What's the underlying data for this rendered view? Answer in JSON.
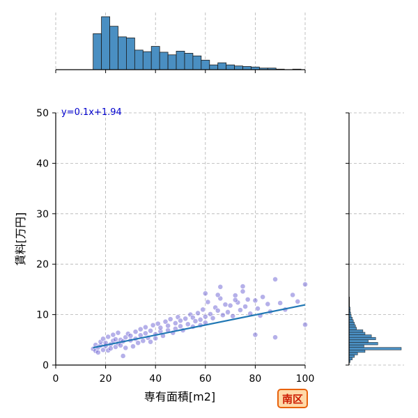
{
  "chart_data": {
    "type": "scatter",
    "xlabel": "専有面積[m2]",
    "ylabel": "賃料[万円]",
    "xlim": [
      0,
      100
    ],
    "ylim": [
      0,
      50
    ],
    "xticks": [
      "0",
      "20",
      "40",
      "60",
      "80",
      "100"
    ],
    "yticks": [
      "0",
      "10",
      "20",
      "30",
      "40",
      "50"
    ],
    "grid": true,
    "regression": {
      "label": "y=0.1x+1.94",
      "slope": 0.1,
      "intercept": 1.94,
      "x_range": [
        15,
        100
      ]
    },
    "scatter_color": "#5a4fcf",
    "line_color": "#1f77b4",
    "hist_color": "#4a8fc2",
    "scatter_points": [
      [
        15,
        3.2
      ],
      [
        16,
        2.8
      ],
      [
        16,
        4.0
      ],
      [
        17,
        3.5
      ],
      [
        17,
        2.5
      ],
      [
        18,
        3.9
      ],
      [
        18,
        4.6
      ],
      [
        19,
        3.0
      ],
      [
        19,
        5.2
      ],
      [
        20,
        3.8
      ],
      [
        20,
        4.4
      ],
      [
        21,
        2.9
      ],
      [
        21,
        5.6
      ],
      [
        22,
        4.1
      ],
      [
        22,
        3.3
      ],
      [
        23,
        4.8
      ],
      [
        23,
        6.0
      ],
      [
        24,
        3.6
      ],
      [
        24,
        5.1
      ],
      [
        25,
        4.3
      ],
      [
        25,
        6.4
      ],
      [
        26,
        3.9
      ],
      [
        26,
        5.0
      ],
      [
        27,
        4.7
      ],
      [
        27,
        1.8
      ],
      [
        28,
        5.5
      ],
      [
        28,
        3.4
      ],
      [
        29,
        6.2
      ],
      [
        30,
        4.9
      ],
      [
        30,
        5.8
      ],
      [
        31,
        3.7
      ],
      [
        32,
        6.6
      ],
      [
        32,
        5.2
      ],
      [
        33,
        4.4
      ],
      [
        34,
        7.1
      ],
      [
        34,
        5.9
      ],
      [
        35,
        4.8
      ],
      [
        36,
        6.3
      ],
      [
        36,
        7.5
      ],
      [
        37,
        5.4
      ],
      [
        38,
        6.8
      ],
      [
        38,
        4.6
      ],
      [
        39,
        7.9
      ],
      [
        40,
        6.1
      ],
      [
        40,
        5.3
      ],
      [
        41,
        8.2
      ],
      [
        42,
        6.7
      ],
      [
        42,
        7.4
      ],
      [
        43,
        5.8
      ],
      [
        44,
        8.6
      ],
      [
        45,
        6.9
      ],
      [
        45,
        7.8
      ],
      [
        46,
        9.1
      ],
      [
        47,
        6.4
      ],
      [
        48,
        8.3
      ],
      [
        48,
        7.2
      ],
      [
        49,
        9.5
      ],
      [
        50,
        7.7
      ],
      [
        50,
        8.8
      ],
      [
        51,
        6.9
      ],
      [
        52,
        9.2
      ],
      [
        53,
        8.1
      ],
      [
        54,
        10.0
      ],
      [
        55,
        7.6
      ],
      [
        55,
        9.4
      ],
      [
        56,
        8.7
      ],
      [
        57,
        10.3
      ],
      [
        58,
        9.0
      ],
      [
        58,
        7.9
      ],
      [
        59,
        11.0
      ],
      [
        60,
        9.6
      ],
      [
        60,
        8.4
      ],
      [
        61,
        12.5
      ],
      [
        62,
        10.1
      ],
      [
        63,
        9.3
      ],
      [
        64,
        11.4
      ],
      [
        65,
        10.8
      ],
      [
        66,
        13.2
      ],
      [
        67,
        9.9
      ],
      [
        68,
        12.0
      ],
      [
        69,
        10.5
      ],
      [
        70,
        11.8
      ],
      [
        71,
        9.7
      ],
      [
        72,
        13.8
      ],
      [
        73,
        12.4
      ],
      [
        74,
        10.9
      ],
      [
        75,
        14.6
      ],
      [
        76,
        11.6
      ],
      [
        77,
        13.0
      ],
      [
        78,
        10.2
      ],
      [
        80,
        12.8
      ],
      [
        81,
        11.2
      ],
      [
        82,
        9.8
      ],
      [
        83,
        13.5
      ],
      [
        85,
        12.1
      ],
      [
        86,
        10.6
      ],
      [
        88,
        17.0
      ],
      [
        90,
        12.3
      ],
      [
        92,
        11.0
      ],
      [
        95,
        13.9
      ],
      [
        97,
        12.6
      ],
      [
        100,
        16.0
      ],
      [
        100,
        8.0
      ],
      [
        66,
        15.5
      ],
      [
        72,
        12.9
      ],
      [
        65,
        13.9
      ],
      [
        75,
        15.6
      ],
      [
        80,
        6.0
      ],
      [
        88,
        5.5
      ],
      [
        60,
        14.2
      ]
    ],
    "top_hist": {
      "bin_edges": [
        15,
        18.33,
        21.67,
        25,
        28.33,
        31.67,
        35,
        38.33,
        41.67,
        45,
        48.33,
        51.67,
        55,
        58.33,
        61.67,
        65,
        68.33,
        71.67,
        75,
        78.33,
        81.67,
        85,
        88.33,
        91.67,
        95,
        98.33,
        100
      ],
      "counts": [
        68,
        100,
        82,
        62,
        60,
        37,
        34,
        44,
        33,
        28,
        35,
        31,
        26,
        18,
        9,
        13,
        9,
        7,
        6,
        5,
        3,
        3,
        1,
        0,
        1,
        0
      ]
    },
    "right_hist": {
      "bin_edges": [
        0.5,
        1,
        1.5,
        2,
        2.5,
        3,
        3.5,
        4,
        4.5,
        5,
        5.5,
        6,
        6.5,
        7,
        7.5,
        8,
        8.5,
        9,
        9.5,
        10,
        10.5,
        11,
        11.5,
        12,
        12.5,
        13,
        13.5,
        14
      ],
      "counts": [
        2,
        6,
        10,
        16,
        30,
        98,
        28,
        54,
        36,
        50,
        42,
        30,
        26,
        14,
        12,
        10,
        8,
        6,
        4,
        3,
        2,
        2,
        1,
        1,
        1,
        1,
        0
      ]
    }
  },
  "badge": {
    "label": "南区"
  }
}
